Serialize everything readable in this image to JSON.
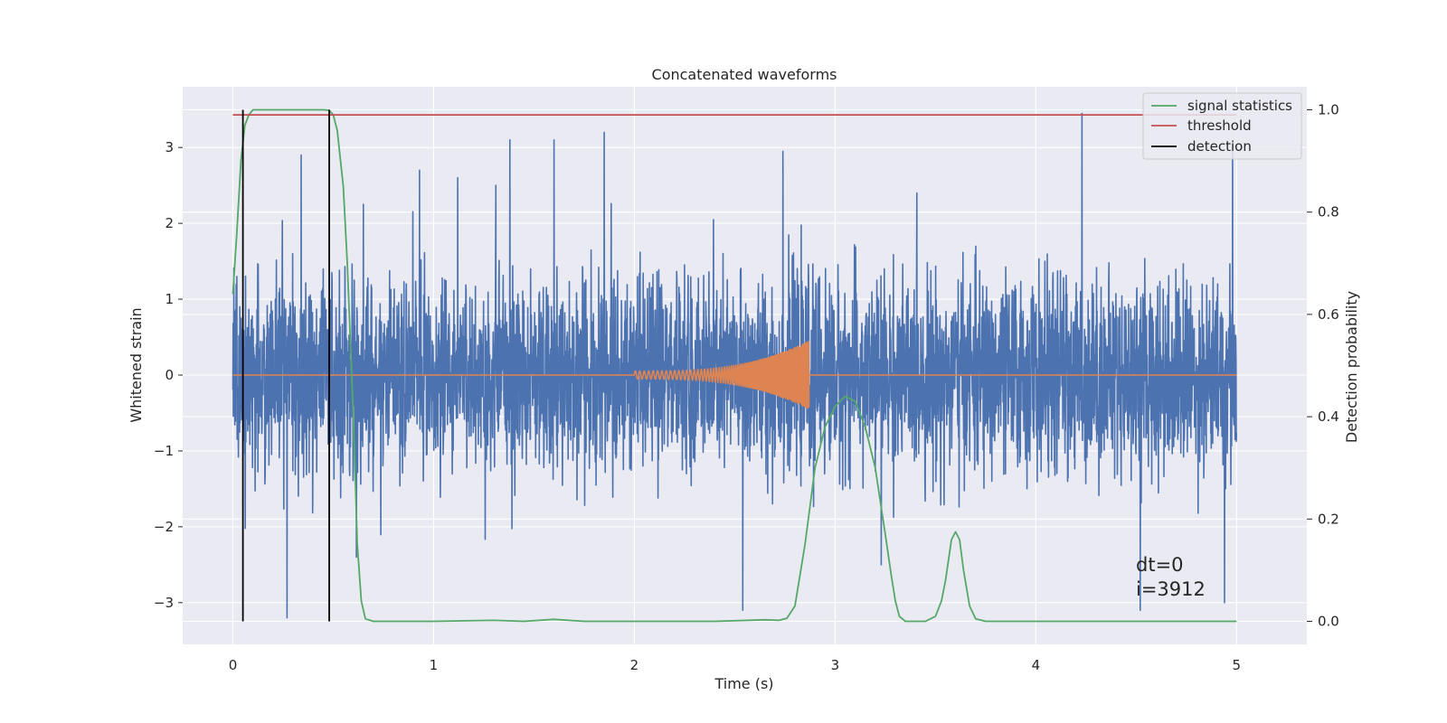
{
  "chart_data": {
    "type": "line",
    "title": "Concatenated waveforms",
    "xlabel": "Time (s)",
    "ylabel": "Whitened strain",
    "y2label": "Detection probability",
    "xlim": [
      -0.25,
      5.35
    ],
    "ylim": [
      -3.55,
      3.8
    ],
    "y2lim": [
      -0.045,
      1.045
    ],
    "xticks": [
      0,
      1,
      2,
      3,
      4,
      5
    ],
    "xtick_labels": [
      "0",
      "1",
      "2",
      "3",
      "4",
      "5"
    ],
    "yticks": [
      3,
      2,
      1,
      0,
      -1,
      -2,
      -3
    ],
    "ytick_labels": [
      "3",
      "2",
      "1",
      "0",
      "−1",
      "−2",
      "−3"
    ],
    "y2ticks": [
      1.0,
      0.8,
      0.6,
      0.4,
      0.2,
      0.0
    ],
    "y2tick_labels": [
      "1.0",
      "0.8",
      "0.6",
      "0.4",
      "0.2",
      "0.0"
    ],
    "grid": true,
    "legend_position": "top-right",
    "colors": {
      "background": "#eaeaf2",
      "grid": "#ffffff",
      "noise": "#4c72b0",
      "signal": "#dd8452",
      "statistics": "#55a868",
      "threshold": "#c44e52",
      "detection": "#000000"
    },
    "noise_series": {
      "x_start": 0.0,
      "x_end": 5.0,
      "typical_range": [
        -1.6,
        1.6
      ],
      "peak_events": [
        {
          "x": 0.02,
          "y": 1.3
        },
        {
          "x": 0.27,
          "y": -3.2
        },
        {
          "x": 0.34,
          "y": 2.9
        },
        {
          "x": 0.65,
          "y": 2.25
        },
        {
          "x": 0.93,
          "y": 2.7
        },
        {
          "x": 1.12,
          "y": 2.6
        },
        {
          "x": 1.31,
          "y": 2.5
        },
        {
          "x": 1.38,
          "y": 3.1
        },
        {
          "x": 1.6,
          "y": 3.1
        },
        {
          "x": 1.85,
          "y": 3.2
        },
        {
          "x": 2.54,
          "y": -3.1
        },
        {
          "x": 2.74,
          "y": 2.95
        },
        {
          "x": 3.23,
          "y": -2.5
        },
        {
          "x": 4.23,
          "y": 3.45
        },
        {
          "x": 4.52,
          "y": -3.1
        },
        {
          "x": 4.94,
          "y": -3.0
        },
        {
          "x": 4.98,
          "y": 3.1
        }
      ]
    },
    "signal_series": {
      "x_start": 0.0,
      "x_end": 5.0,
      "chirp_start": 2.0,
      "chirp_end": 2.87,
      "max_amplitude": 0.45,
      "baseline": 0.0
    },
    "statistics_series": {
      "x": [
        0.0,
        0.02,
        0.04,
        0.06,
        0.08,
        0.1,
        0.15,
        0.2,
        0.3,
        0.4,
        0.45,
        0.48,
        0.5,
        0.52,
        0.55,
        0.57,
        0.6,
        0.62,
        0.64,
        0.66,
        0.7,
        1.0,
        1.3,
        1.45,
        1.6,
        1.75,
        2.0,
        2.4,
        2.65,
        2.72,
        2.76,
        2.8,
        2.85,
        2.9,
        2.95,
        3.0,
        3.05,
        3.1,
        3.15,
        3.2,
        3.25,
        3.28,
        3.3,
        3.32,
        3.35,
        3.4,
        3.45,
        3.5,
        3.53,
        3.55,
        3.58,
        3.6,
        3.62,
        3.64,
        3.67,
        3.7,
        3.75,
        4.0,
        4.5,
        5.0
      ],
      "y": [
        0.64,
        0.76,
        0.9,
        0.97,
        0.99,
        1.0,
        1.0,
        1.0,
        1.0,
        1.0,
        1.0,
        0.999,
        0.99,
        0.96,
        0.85,
        0.7,
        0.4,
        0.15,
        0.04,
        0.005,
        0.0,
        0.0,
        0.002,
        0.0,
        0.004,
        0.0,
        0.0,
        0.0,
        0.003,
        0.002,
        0.006,
        0.03,
        0.15,
        0.3,
        0.38,
        0.42,
        0.44,
        0.43,
        0.38,
        0.3,
        0.17,
        0.09,
        0.04,
        0.01,
        0.0,
        0.0,
        0.0,
        0.01,
        0.04,
        0.08,
        0.16,
        0.175,
        0.16,
        0.1,
        0.03,
        0.005,
        0.0,
        0.0,
        0.0,
        0.0
      ]
    },
    "threshold_value": 0.99,
    "threshold_range": [
      0.0,
      5.0
    ],
    "detections": [
      0.05,
      0.48
    ],
    "legend": [
      "signal statistics",
      "threshold",
      "detection"
    ],
    "annotations": [
      "dt=0",
      "i=3912"
    ]
  }
}
